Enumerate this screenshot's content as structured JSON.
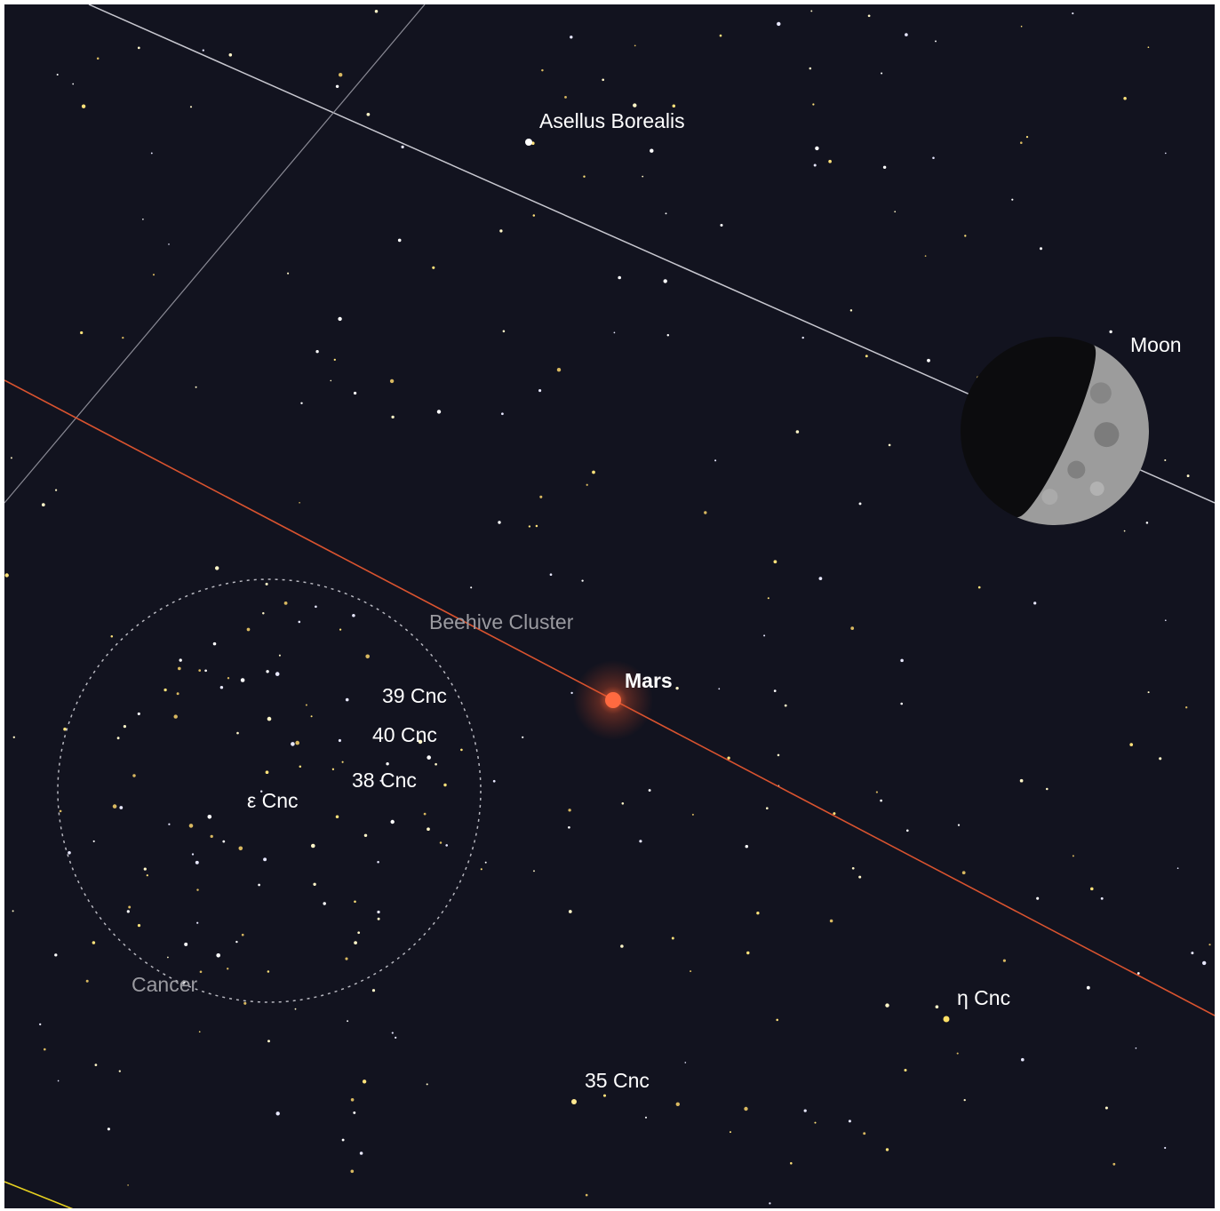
{
  "objects": [
    {
      "label": "Asellus Borealis"
    },
    {
      "label": "Moon"
    },
    {
      "label": "Beehive Cluster"
    },
    {
      "label": "Mars"
    },
    {
      "label": "39 Cnc"
    },
    {
      "label": "40 Cnc"
    },
    {
      "label": "38 Cnc"
    },
    {
      "label": "ε Cnc"
    },
    {
      "label": "Cancer"
    },
    {
      "label": "η Cnc"
    },
    {
      "label": "35 Cnc"
    }
  ]
}
